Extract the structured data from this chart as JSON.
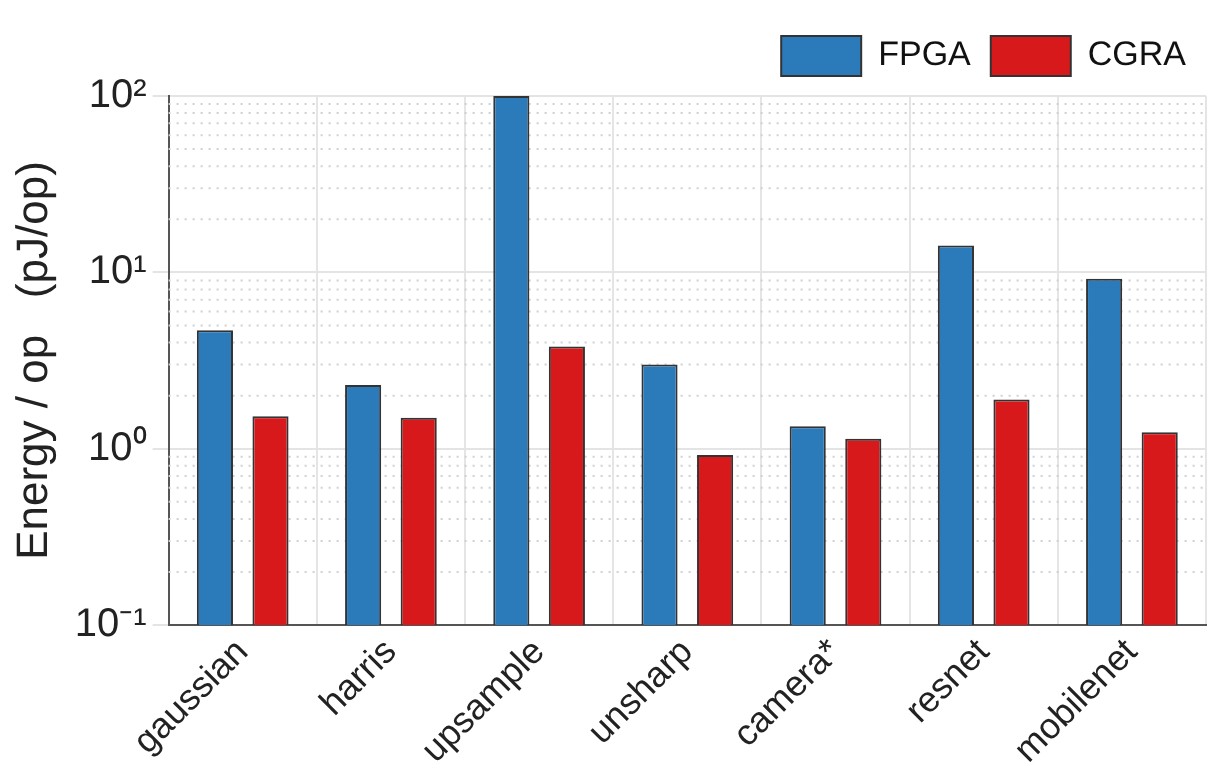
{
  "chart_data": {
    "type": "bar",
    "ylabel": "Energy / op   (pJ/op)",
    "categories": [
      "gaussian",
      "harris",
      "upsample",
      "unsharp",
      "camera*",
      "resnet",
      "mobilenet"
    ],
    "series": [
      {
        "name": "FPGA",
        "color": "#2b7bba",
        "values": [
          4.7,
          2.3,
          100,
          3.0,
          1.34,
          14.2,
          9.2
        ]
      },
      {
        "name": "CGRA",
        "color": "#d7191c",
        "values": [
          1.53,
          1.5,
          3.8,
          0.92,
          1.14,
          1.9,
          1.24
        ]
      }
    ],
    "log": "y",
    "ylim": [
      0.1,
      100
    ],
    "yticks": [
      {
        "value": 0.1,
        "label": "10⁻¹"
      },
      {
        "value": 1,
        "label": "10⁰"
      },
      {
        "value": 10,
        "label": "10¹"
      },
      {
        "value": 100,
        "label": "10²"
      }
    ],
    "grid": true,
    "legend": "top right"
  }
}
